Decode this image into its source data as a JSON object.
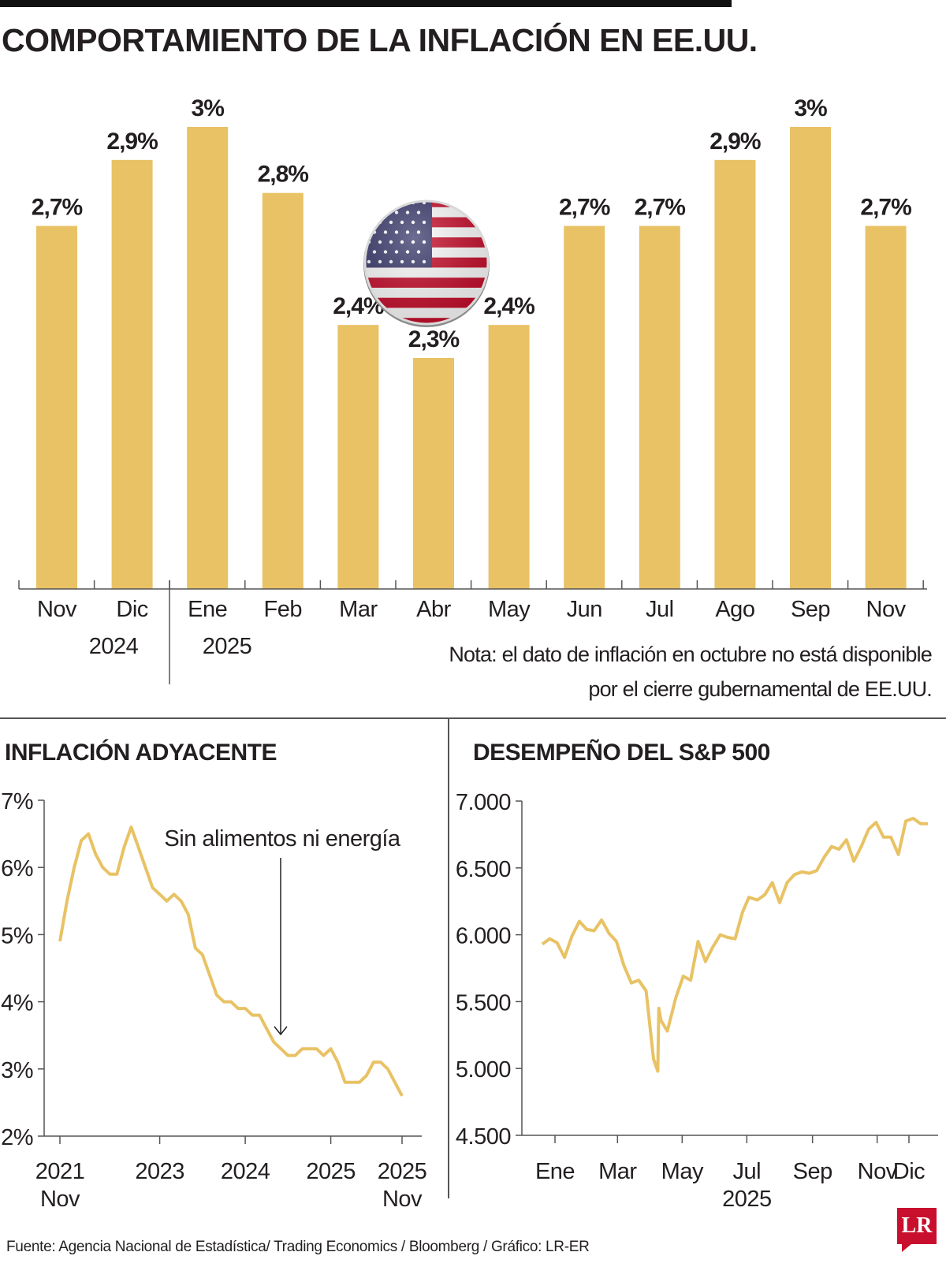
{
  "title": "COMPORTAMIENTO DE LA INFLACIÓN EN EE.UU.",
  "note": "Nota: el dato de inflación en octubre no está disponible por el cierre gubernamental de EE.UU.",
  "source": "Fuente: Agencia Nacional de Estadística/ Trading Economics / Bloomberg / Gráfico: LR-ER",
  "logo": "LR",
  "colors": {
    "bar": "#e8c264",
    "line": "#e8c264",
    "text": "#231f20",
    "flag_red": "#c8102e",
    "flag_blue": "#3c3b6e"
  },
  "icons": {
    "flag": "us-flag-icon"
  },
  "chart_data": [
    {
      "type": "bar",
      "title": "",
      "categories": [
        "Nov",
        "Dic",
        "Ene",
        "Feb",
        "Mar",
        "Abr",
        "May",
        "Jun",
        "Jul",
        "Ago",
        "Sep",
        "Nov"
      ],
      "values": [
        2.7,
        2.9,
        3.0,
        2.8,
        2.4,
        2.3,
        2.4,
        2.7,
        2.7,
        2.9,
        3.0,
        2.7
      ],
      "labels": [
        "2,7%",
        "2,9%",
        "3%",
        "2,8%",
        "2,4%",
        "2,3%",
        "2,4%",
        "2,7%",
        "2,7%",
        "2,9%",
        "3%",
        "2,7%"
      ],
      "year_labels": [
        "2024",
        "2025"
      ],
      "ylim": [
        1.6,
        3.0
      ]
    },
    {
      "type": "line",
      "title": "INFLACIÓN ADYACENTE",
      "annotation": "Sin alimentos ni energía",
      "yticks": [
        "7%",
        "6%",
        "5%",
        "4%",
        "3%",
        "2%"
      ],
      "ylim": [
        2,
        7
      ],
      "xtick_labels": [
        [
          "2021",
          "Nov"
        ],
        [
          "2023",
          ""
        ],
        [
          "2024",
          ""
        ],
        [
          "2025",
          ""
        ],
        [
          "2025",
          "Nov"
        ]
      ],
      "x": [
        "2021-11",
        "2021-12",
        "2022-01",
        "2022-02",
        "2022-03",
        "2022-04",
        "2022-05",
        "2022-06",
        "2022-07",
        "2022-08",
        "2022-09",
        "2022-10",
        "2022-11",
        "2022-12",
        "2023-01",
        "2023-02",
        "2023-03",
        "2023-04",
        "2023-05",
        "2023-06",
        "2023-07",
        "2023-08",
        "2023-09",
        "2023-10",
        "2023-11",
        "2023-12",
        "2024-01",
        "2024-02",
        "2024-03",
        "2024-04",
        "2024-05",
        "2024-06",
        "2024-07",
        "2024-08",
        "2024-09",
        "2024-10",
        "2024-11",
        "2024-12",
        "2025-01",
        "2025-02",
        "2025-03",
        "2025-04",
        "2025-05",
        "2025-06",
        "2025-07",
        "2025-08",
        "2025-09",
        "2025-11"
      ],
      "values": [
        4.9,
        5.5,
        6.0,
        6.4,
        6.5,
        6.2,
        6.0,
        5.9,
        5.9,
        6.3,
        6.6,
        6.3,
        6.0,
        5.7,
        5.6,
        5.5,
        5.6,
        5.5,
        5.3,
        4.8,
        4.7,
        4.4,
        4.1,
        4.0,
        4.0,
        3.9,
        3.9,
        3.8,
        3.8,
        3.6,
        3.4,
        3.3,
        3.2,
        3.2,
        3.3,
        3.3,
        3.3,
        3.2,
        3.3,
        3.1,
        2.8,
        2.8,
        2.8,
        2.9,
        3.1,
        3.1,
        3.0,
        2.6
      ]
    },
    {
      "type": "line",
      "title": "DESEMPEÑO DEL S&P 500",
      "yticks": [
        "7.000",
        "6.500",
        "6.000",
        "5.500",
        "5.000",
        "4.500"
      ],
      "ylim": [
        4500,
        7000
      ],
      "xtick_labels": [
        "Ene",
        "Mar",
        "May",
        "Jul",
        "Sep",
        "Nov",
        "Dic"
      ],
      "year_label": "2025",
      "x": [
        "2024-12-20",
        "2024-12-27",
        "2025-01-03",
        "2025-01-10",
        "2025-01-17",
        "2025-01-24",
        "2025-01-31",
        "2025-02-07",
        "2025-02-14",
        "2025-02-21",
        "2025-02-28",
        "2025-03-07",
        "2025-03-14",
        "2025-03-21",
        "2025-03-28",
        "2025-04-04",
        "2025-04-08",
        "2025-04-09",
        "2025-04-11",
        "2025-04-17",
        "2025-04-25",
        "2025-05-02",
        "2025-05-09",
        "2025-05-16",
        "2025-05-23",
        "2025-05-30",
        "2025-06-06",
        "2025-06-13",
        "2025-06-20",
        "2025-06-27",
        "2025-07-03",
        "2025-07-11",
        "2025-07-18",
        "2025-07-25",
        "2025-08-01",
        "2025-08-08",
        "2025-08-15",
        "2025-08-22",
        "2025-08-29",
        "2025-09-05",
        "2025-09-12",
        "2025-09-19",
        "2025-09-26",
        "2025-10-03",
        "2025-10-10",
        "2025-10-17",
        "2025-10-24",
        "2025-10-31",
        "2025-11-07",
        "2025-11-14",
        "2025-11-21",
        "2025-11-28",
        "2025-12-05",
        "2025-12-12",
        "2025-12-19"
      ],
      "values": [
        5930,
        5970,
        5940,
        5830,
        5990,
        6100,
        6040,
        6030,
        6110,
        6010,
        5950,
        5770,
        5640,
        5660,
        5580,
        5070,
        4980,
        5450,
        5360,
        5280,
        5530,
        5690,
        5660,
        5950,
        5800,
        5910,
        6000,
        5980,
        5970,
        6170,
        6280,
        6260,
        6300,
        6390,
        6240,
        6390,
        6450,
        6470,
        6460,
        6480,
        6580,
        6660,
        6640,
        6710,
        6550,
        6660,
        6790,
        6840,
        6730,
        6730,
        6600,
        6850,
        6870,
        6830,
        6830
      ]
    }
  ]
}
